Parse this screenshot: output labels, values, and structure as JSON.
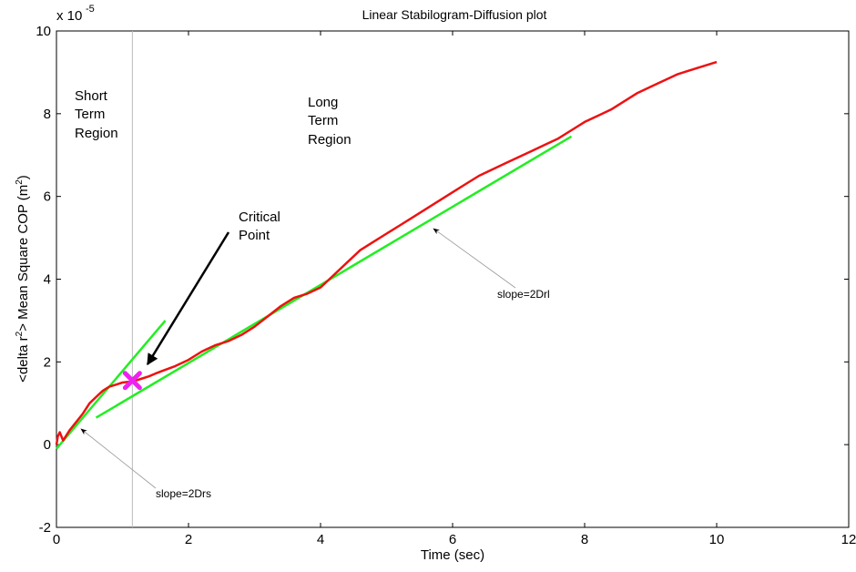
{
  "chart_data": {
    "type": "line",
    "title": "Linear Stabilogram-Diffusion plot",
    "xlabel": "Time (sec)",
    "ylabel": "<delta r²> Mean Square COP (m²)",
    "ylabel_parts": {
      "pre": "<delta r",
      "sup1": "2",
      "mid": "> Mean Square COP (m",
      "sup2": "2",
      "post": ")"
    },
    "y_exponent": {
      "base": "x 10",
      "power": "-5"
    },
    "xlim": [
      0,
      12
    ],
    "ylim": [
      -2,
      10
    ],
    "x_ticks": [
      "0",
      "2",
      "4",
      "6",
      "8",
      "10",
      "12"
    ],
    "y_ticks": [
      "-2",
      "0",
      "2",
      "4",
      "6",
      "8",
      "10"
    ],
    "grid": false,
    "colors": {
      "msd": "#ee1111",
      "fit": "#22ee22",
      "critical": "#ee22ee",
      "divider": "#bbbbbb"
    },
    "series": [
      {
        "x": [
          0,
          0.02,
          0.05,
          0.1,
          0.2,
          0.3,
          0.4,
          0.5,
          0.6,
          0.7,
          0.8,
          0.9,
          1.0,
          1.1,
          1.2,
          1.3,
          1.4,
          1.5,
          1.6,
          1.8,
          2.0,
          2.2,
          2.4,
          2.6,
          2.8,
          3.0,
          3.2,
          3.4,
          3.6,
          3.8,
          4.0,
          4.2,
          4.4,
          4.6,
          4.8,
          5.0,
          5.2,
          5.4,
          5.6,
          5.8,
          6.0,
          6.2,
          6.4,
          6.6,
          6.8,
          7.0,
          7.2,
          7.4,
          7.6,
          7.8,
          8.0,
          8.2,
          8.4,
          8.6,
          8.8,
          9.0,
          9.2,
          9.4,
          9.6,
          9.8,
          10.0
        ],
        "y": [
          0,
          0.2,
          0.3,
          0.1,
          0.35,
          0.55,
          0.75,
          1.0,
          1.15,
          1.3,
          1.4,
          1.45,
          1.5,
          1.52,
          1.55,
          1.6,
          1.65,
          1.72,
          1.78,
          1.9,
          2.05,
          2.25,
          2.4,
          2.5,
          2.65,
          2.85,
          3.1,
          3.35,
          3.55,
          3.65,
          3.8,
          4.1,
          4.4,
          4.7,
          4.9,
          5.1,
          5.3,
          5.5,
          5.7,
          5.9,
          6.1,
          6.3,
          6.5,
          6.65,
          6.8,
          6.95,
          7.1,
          7.25,
          7.4,
          7.6,
          7.8,
          7.95,
          8.1,
          8.3,
          8.5,
          8.65,
          8.8,
          8.95,
          9.05,
          9.15,
          9.25
        ]
      },
      {
        "x": [
          0,
          1.65
        ],
        "y": [
          -0.1,
          3.0
        ]
      },
      {
        "x": [
          0.6,
          7.8
        ],
        "y": [
          0.65,
          7.45
        ]
      }
    ],
    "critical_point": {
      "x": 1.15,
      "y": 1.55
    },
    "divider_x": 1.15,
    "annotations": {
      "short_term": [
        "Short",
        "Term",
        "Region"
      ],
      "long_term": [
        "Long",
        "Term",
        "Region"
      ],
      "critical": [
        "Critical",
        "Point"
      ],
      "slope_short": "slope=2Drs",
      "slope_long": "slope=2Drl"
    }
  }
}
